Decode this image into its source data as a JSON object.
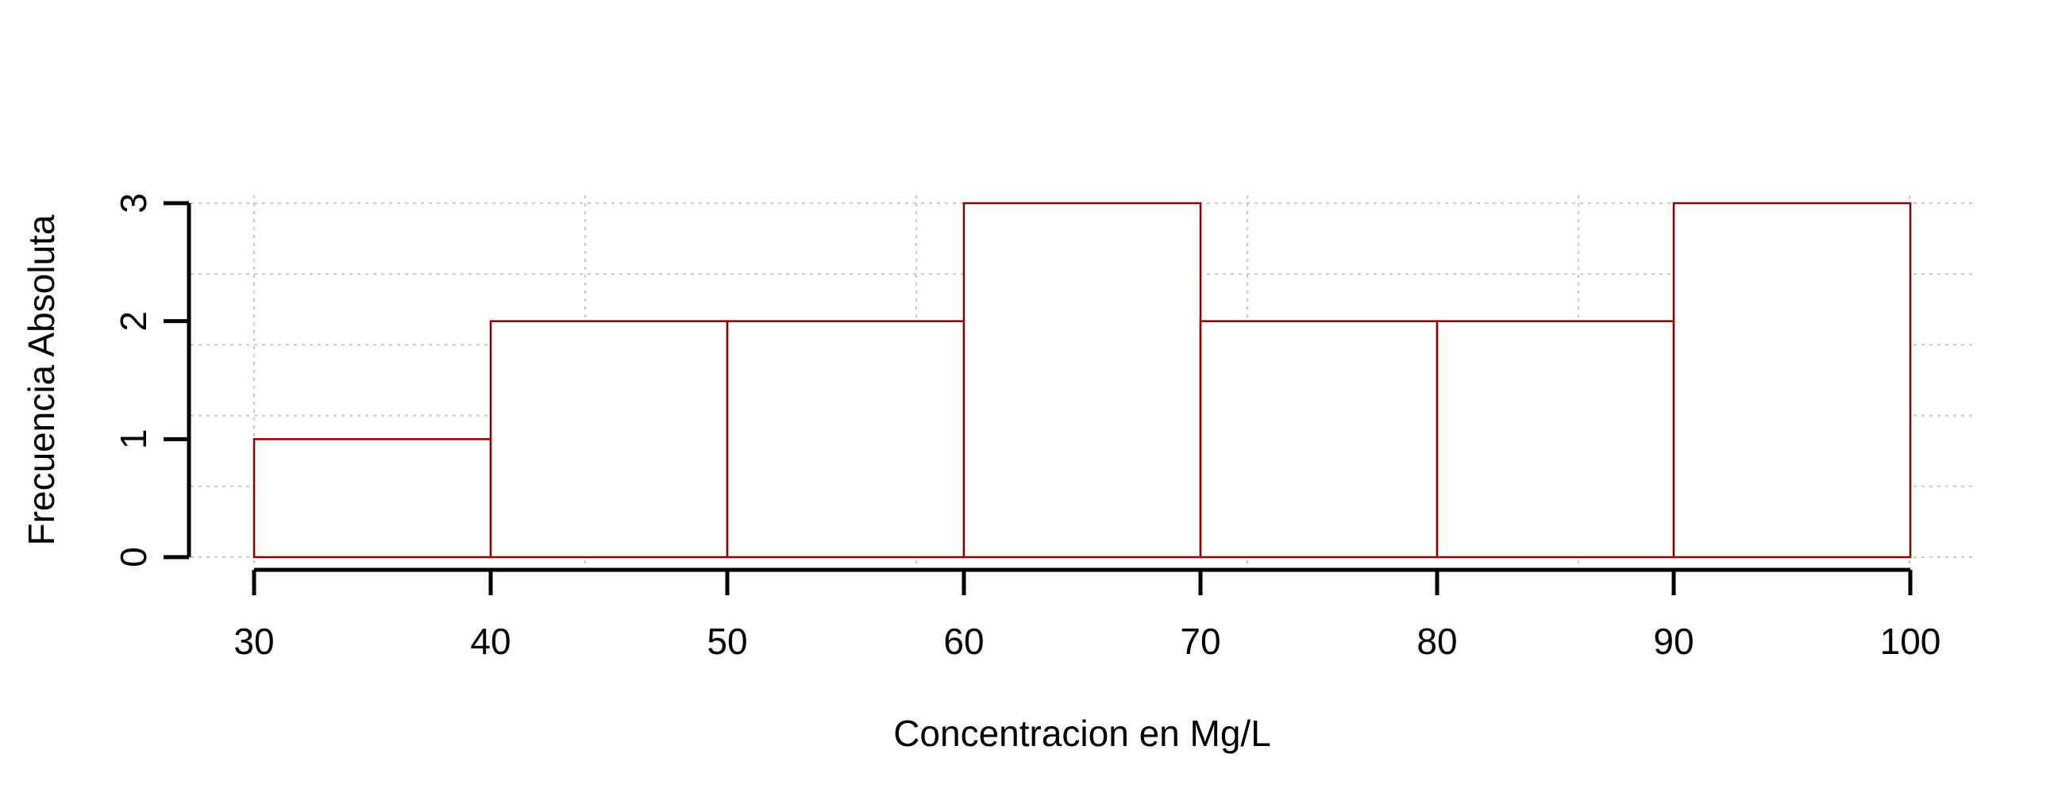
{
  "chart_data": {
    "type": "bar",
    "histogram": true,
    "bins": [
      [
        30,
        40
      ],
      [
        40,
        50
      ],
      [
        50,
        60
      ],
      [
        60,
        70
      ],
      [
        70,
        80
      ],
      [
        80,
        90
      ],
      [
        90,
        100
      ]
    ],
    "values": [
      1,
      2,
      2,
      3,
      2,
      2,
      3
    ],
    "xlabel": "Concentracion en Mg/L",
    "ylabel": "Frecuencia Absoluta",
    "x_ticks": [
      "30",
      "40",
      "50",
      "60",
      "70",
      "80",
      "90",
      "100"
    ],
    "y_ticks": [
      "0",
      "1",
      "2",
      "3"
    ],
    "xlim": [
      30,
      100
    ],
    "ylim": [
      0,
      3
    ],
    "grid": true,
    "bar_color": "#8b0000"
  }
}
